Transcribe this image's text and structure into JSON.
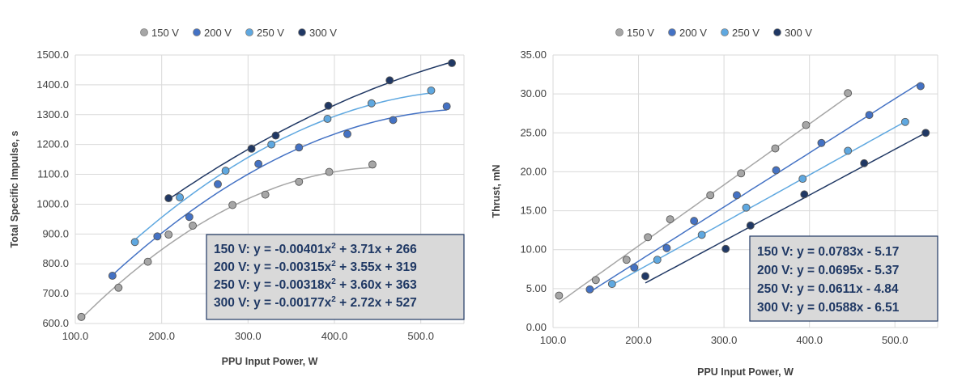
{
  "colors": {
    "150 V": "#a6a6a6",
    "200 V": "#4472c4",
    "250 V": "#5fa8e0",
    "300 V": "#203864",
    "grid": "#d9d9d9",
    "eq_box_fill": "#d9d9d9",
    "eq_box_border": "#203864",
    "eq_text": "#1f3864"
  },
  "chart_data": [
    {
      "type": "scatter",
      "xlabel": "PPU Input Power, W",
      "ylabel": "Total Specific Impulse, s",
      "xlim": [
        100,
        550
      ],
      "ylim": [
        600,
        1500
      ],
      "xticks": [
        "100.0",
        "200.0",
        "300.0",
        "400.0",
        "500.0"
      ],
      "yticks": [
        "600.0",
        "700.0",
        "800.0",
        "900.0",
        "1000.0",
        "1100.0",
        "1200.0",
        "1300.0",
        "1400.0",
        "1500.0"
      ],
      "legend": [
        "150 V",
        "200 V",
        "250 V",
        "300 V"
      ],
      "legend_position": "top",
      "grid": true,
      "series": [
        {
          "name": "150 V",
          "trend": {
            "kind": "poly2",
            "a": -0.00401,
            "b": 3.71,
            "c": 266,
            "x0": 107,
            "x1": 447
          },
          "points": [
            [
              107,
              622
            ],
            [
              150,
              720
            ],
            [
              184,
              807
            ],
            [
              208,
              898
            ],
            [
              236,
              928
            ],
            [
              282,
              997
            ],
            [
              320,
              1032
            ],
            [
              359,
              1075
            ],
            [
              394,
              1108
            ],
            [
              444,
              1133
            ]
          ]
        },
        {
          "name": "200 V",
          "trend": {
            "kind": "poly2",
            "a": -0.00315,
            "b": 3.55,
            "c": 319,
            "x0": 143,
            "x1": 530
          },
          "points": [
            [
              143,
              760
            ],
            [
              195,
              892
            ],
            [
              232,
              957
            ],
            [
              265,
              1067
            ],
            [
              312,
              1135
            ],
            [
              359,
              1190
            ],
            [
              415,
              1235
            ],
            [
              468,
              1282
            ],
            [
              530,
              1328
            ]
          ]
        },
        {
          "name": "250 V",
          "trend": {
            "kind": "poly2",
            "a": -0.00318,
            "b": 3.6,
            "c": 363,
            "x0": 169,
            "x1": 512
          },
          "points": [
            [
              169,
              873
            ],
            [
              221,
              1023
            ],
            [
              274,
              1112
            ],
            [
              327,
              1200
            ],
            [
              392,
              1286
            ],
            [
              443,
              1338
            ],
            [
              512,
              1381
            ]
          ]
        },
        {
          "name": "300 V",
          "trend": {
            "kind": "poly2",
            "a": -0.00177,
            "b": 2.72,
            "c": 527,
            "x0": 208,
            "x1": 536
          },
          "points": [
            [
              208,
              1020
            ],
            [
              304,
              1186
            ],
            [
              332,
              1230
            ],
            [
              393,
              1330
            ],
            [
              464,
              1415
            ],
            [
              536,
              1473
            ]
          ]
        }
      ],
      "equations": [
        {
          "label": "150 V:  y = -0.00401x",
          "sup": "2",
          "rest": " + 3.71x + 266"
        },
        {
          "label": "200 V:  y = -0.00315x",
          "sup": "2",
          "rest": " + 3.55x + 319"
        },
        {
          "label": "250 V:  y = -0.00318x",
          "sup": "2",
          "rest": " + 3.60x + 363"
        },
        {
          "label": "300 V:  y = -0.00177x",
          "sup": "2",
          "rest": " + 2.72x + 527"
        }
      ]
    },
    {
      "type": "scatter",
      "xlabel": "PPU Input Power, W",
      "ylabel": "Thrust, mN",
      "xlim": [
        100,
        550
      ],
      "ylim": [
        0,
        35
      ],
      "xticks": [
        "100.0",
        "200.0",
        "300.0",
        "400.0",
        "500.0"
      ],
      "yticks": [
        "0.00",
        "5.00",
        "10.00",
        "15.00",
        "20.00",
        "25.00",
        "30.00",
        "35.00"
      ],
      "legend": [
        "150 V",
        "200 V",
        "250 V",
        "300 V"
      ],
      "legend_position": "top",
      "grid": true,
      "series": [
        {
          "name": "150 V",
          "trend": {
            "kind": "linear",
            "m": 0.0783,
            "b": -5.17,
            "x0": 107,
            "x1": 447
          },
          "points": [
            [
              107,
              4.1
            ],
            [
              150,
              6.1
            ],
            [
              186,
              8.7
            ],
            [
              211,
              11.6
            ],
            [
              237,
              13.9
            ],
            [
              284,
              17.0
            ],
            [
              320,
              19.8
            ],
            [
              360,
              23.0
            ],
            [
              396,
              26.0
            ],
            [
              445,
              30.1
            ]
          ]
        },
        {
          "name": "200 V",
          "trend": {
            "kind": "linear",
            "m": 0.0695,
            "b": -5.37,
            "x0": 143,
            "x1": 530
          },
          "points": [
            [
              143,
              4.9
            ],
            [
              195,
              7.7
            ],
            [
              233,
              10.2
            ],
            [
              265,
              13.7
            ],
            [
              315,
              17.0
            ],
            [
              361,
              20.2
            ],
            [
              414,
              23.7
            ],
            [
              470,
              27.3
            ],
            [
              530,
              31.0
            ]
          ]
        },
        {
          "name": "250 V",
          "trend": {
            "kind": "linear",
            "m": 0.0611,
            "b": -4.84,
            "x0": 169,
            "x1": 512
          },
          "points": [
            [
              169,
              5.6
            ],
            [
              222,
              8.7
            ],
            [
              274,
              11.9
            ],
            [
              326,
              15.4
            ],
            [
              392,
              19.1
            ],
            [
              445,
              22.7
            ],
            [
              512,
              26.4
            ]
          ]
        },
        {
          "name": "300 V",
          "trend": {
            "kind": "linear",
            "m": 0.0588,
            "b": -6.51,
            "x0": 208,
            "x1": 536
          },
          "points": [
            [
              208,
              6.6
            ],
            [
              302,
              10.1
            ],
            [
              331,
              13.1
            ],
            [
              394,
              17.1
            ],
            [
              464,
              21.1
            ],
            [
              536,
              25.0
            ]
          ]
        }
      ],
      "equations": [
        {
          "label": "150 V:  y = 0.0783x - 5.17",
          "sup": "",
          "rest": ""
        },
        {
          "label": "200 V:  y = 0.0695x - 5.37",
          "sup": "",
          "rest": ""
        },
        {
          "label": "250 V:  y = 0.0611x - 4.84",
          "sup": "",
          "rest": ""
        },
        {
          "label": "300 V:  y = 0.0588x - 6.51",
          "sup": "",
          "rest": ""
        }
      ]
    }
  ]
}
